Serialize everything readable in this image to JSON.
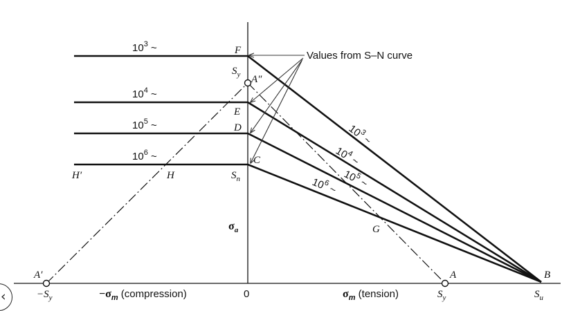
{
  "callout": "Values from S–N curve",
  "points": {
    "F": "F",
    "A2": "A″",
    "E": "E",
    "D": "D",
    "C": "C",
    "Hp": "H′",
    "H": "H",
    "G": "G",
    "A": "A",
    "Ap": "A′",
    "B": "B"
  },
  "symbols": {
    "sy_top": "S",
    "sy_top_sub": "y",
    "sn": "S",
    "sn_sub": "n",
    "sigma_a": "σ",
    "sigma_a_sub": "a",
    "neg_sy": "−S",
    "neg_sy_sub": "y",
    "sy_right": "S",
    "sy_right_sub": "y",
    "su": "S",
    "su_sub": "u"
  },
  "axis": {
    "origin": "0",
    "compression_sym": "−σ",
    "compression_sub": "m",
    "compression_text": " (compression)",
    "tension_sym": "σ",
    "tension_sub": "m",
    "tension_text": " (tension)"
  },
  "cycles_left": [
    {
      "base": "10",
      "exp": "3",
      "tail": " ~"
    },
    {
      "base": "10",
      "exp": "4",
      "tail": " ~"
    },
    {
      "base": "10",
      "exp": "5",
      "tail": " ~"
    },
    {
      "base": "10",
      "exp": "6",
      "tail": " ~"
    }
  ],
  "cycles_right": [
    {
      "base": "10",
      "exp": "3",
      "tail": " ~"
    },
    {
      "base": "10",
      "exp": "4",
      "tail": " ~"
    },
    {
      "base": "10",
      "exp": "5",
      "tail": " ~"
    },
    {
      "base": "10",
      "exp": "6",
      "tail": " ~"
    }
  ],
  "nav": {
    "icon": "chevron-left-icon",
    "glyph": "‹"
  }
}
